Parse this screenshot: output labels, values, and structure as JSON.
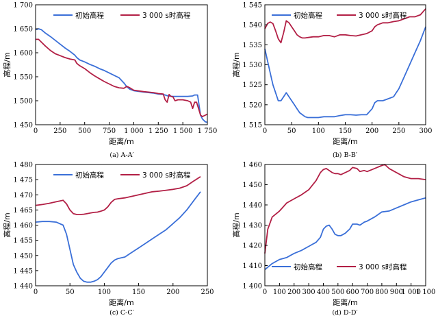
{
  "chart_data": [
    {
      "type": "line",
      "caption": "(a) A-A′",
      "xlabel": "距离/m",
      "ylabel": "高程/m",
      "xlim": [
        0,
        1750
      ],
      "ylim": [
        1450,
        1700
      ],
      "xticks": [
        "0",
        "250",
        "500",
        "750",
        "1 000",
        "1 250",
        "1 500",
        "1 750"
      ],
      "xtick_values": [
        0,
        250,
        500,
        750,
        1000,
        1250,
        1500,
        1750
      ],
      "yticks": [
        "1 450",
        "1 500",
        "1 550",
        "1 600",
        "1 650",
        "1 700"
      ],
      "ytick_values": [
        1450,
        1500,
        1550,
        1600,
        1650,
        1700
      ],
      "legend_position": "top",
      "series": [
        {
          "name": "初始高程",
          "color": "#3a6fd8",
          "x": [
            0,
            30,
            60,
            100,
            150,
            200,
            250,
            300,
            350,
            400,
            420,
            450,
            500,
            550,
            600,
            650,
            700,
            750,
            800,
            850,
            900,
            930,
            960,
            1000,
            1100,
            1200,
            1250,
            1300,
            1320,
            1350,
            1400,
            1450,
            1500,
            1550,
            1600,
            1620,
            1650,
            1680,
            1700,
            1730,
            1750
          ],
          "y": [
            1648,
            1650,
            1648,
            1641,
            1634,
            1626,
            1618,
            1610,
            1603,
            1595,
            1590,
            1585,
            1581,
            1576,
            1572,
            1567,
            1563,
            1558,
            1553,
            1548,
            1537,
            1529,
            1524,
            1521,
            1518,
            1516,
            1514,
            1513,
            1512,
            1510,
            1509,
            1509,
            1509,
            1509,
            1510,
            1512,
            1512,
            1470,
            1462,
            1456,
            1455
          ]
        },
        {
          "name": "3 000 s时高程",
          "color": "#b21f45",
          "x": [
            0,
            30,
            60,
            100,
            150,
            200,
            250,
            300,
            350,
            400,
            420,
            450,
            500,
            550,
            600,
            650,
            700,
            750,
            800,
            850,
            900,
            930,
            960,
            1000,
            1100,
            1200,
            1250,
            1300,
            1320,
            1340,
            1360,
            1380,
            1400,
            1420,
            1450,
            1500,
            1550,
            1580,
            1600,
            1620,
            1640,
            1660,
            1680,
            1700,
            1730,
            1750
          ],
          "y": [
            1628,
            1628,
            1622,
            1614,
            1605,
            1598,
            1594,
            1590,
            1587,
            1585,
            1578,
            1573,
            1567,
            1559,
            1552,
            1546,
            1540,
            1535,
            1530,
            1527,
            1526,
            1530,
            1527,
            1522,
            1519,
            1517,
            1515,
            1514,
            1502,
            1497,
            1513,
            1509,
            1508,
            1500,
            1502,
            1502,
            1500,
            1497,
            1484,
            1497,
            1497,
            1484,
            1470,
            1467,
            1470,
            1472
          ]
        }
      ]
    },
    {
      "type": "line",
      "caption": "(b) B-B′",
      "xlabel": "距离/m",
      "ylabel": "高程/m",
      "xlim": [
        0,
        300
      ],
      "ylim": [
        1515,
        1545
      ],
      "xticks": [
        "0",
        "50",
        "100",
        "150",
        "200",
        "250",
        "300"
      ],
      "xtick_values": [
        0,
        50,
        100,
        150,
        200,
        250,
        300
      ],
      "yticks": [
        "1 515",
        "1 520",
        "1 525",
        "1 530",
        "1 535",
        "1 540",
        "1 545"
      ],
      "ytick_values": [
        1515,
        1520,
        1525,
        1530,
        1535,
        1540,
        1545
      ],
      "legend_position": "top",
      "series": [
        {
          "name": "初始高程",
          "color": "#3a6fd8",
          "x": [
            0,
            5,
            10,
            15,
            20,
            25,
            30,
            35,
            40,
            45,
            50,
            55,
            60,
            65,
            70,
            75,
            80,
            90,
            100,
            110,
            120,
            130,
            140,
            150,
            160,
            170,
            180,
            190,
            200,
            205,
            210,
            220,
            230,
            240,
            250,
            260,
            270,
            280,
            290,
            300
          ],
          "y": [
            1534,
            1531,
            1528,
            1525,
            1523,
            1521,
            1521,
            1522,
            1523,
            1522,
            1521,
            1520,
            1519,
            1518,
            1517.5,
            1517,
            1516.8,
            1516.8,
            1516.8,
            1517,
            1517,
            1517,
            1517.3,
            1517.5,
            1517.5,
            1517.4,
            1517.5,
            1517.5,
            1519,
            1520.5,
            1521,
            1521,
            1521.5,
            1522,
            1524,
            1527,
            1530,
            1533,
            1536,
            1539.5
          ]
        },
        {
          "name": "3 000 s时高程",
          "color": "#b21f45",
          "x": [
            0,
            5,
            10,
            15,
            20,
            25,
            30,
            35,
            40,
            45,
            50,
            55,
            60,
            65,
            70,
            75,
            80,
            90,
            100,
            110,
            120,
            130,
            140,
            150,
            160,
            170,
            180,
            190,
            200,
            205,
            210,
            220,
            230,
            240,
            250,
            260,
            270,
            280,
            290,
            300
          ],
          "y": [
            1539,
            1540.3,
            1540.7,
            1540.3,
            1538.5,
            1536.5,
            1535.5,
            1538,
            1541,
            1540.5,
            1539.5,
            1538.5,
            1537.5,
            1537,
            1536.7,
            1536.7,
            1536.8,
            1537,
            1537,
            1537.3,
            1537.3,
            1537,
            1537.5,
            1537.5,
            1537.3,
            1537.2,
            1537.5,
            1537.8,
            1538.5,
            1539.5,
            1540,
            1540.5,
            1540.5,
            1540.8,
            1541,
            1541.5,
            1542,
            1542,
            1542.5,
            1544
          ]
        }
      ]
    },
    {
      "type": "line",
      "caption": "(c) C-C′",
      "xlabel": "距离/m",
      "ylabel": "高程/m",
      "xlim": [
        0,
        250
      ],
      "ylim": [
        1440,
        1480
      ],
      "xticks": [
        "0",
        "50",
        "100",
        "150",
        "200",
        "250"
      ],
      "xtick_values": [
        0,
        50,
        100,
        150,
        200,
        250
      ],
      "yticks": [
        "1 440",
        "1 445",
        "1 450",
        "1 455",
        "1 460",
        "1 465",
        "1 470",
        "1 475",
        "1 480"
      ],
      "ytick_values": [
        1440,
        1445,
        1450,
        1455,
        1460,
        1465,
        1470,
        1475,
        1480
      ],
      "legend_position": "top",
      "series": [
        {
          "name": "初始高程",
          "color": "#3a6fd8",
          "x": [
            0,
            10,
            20,
            30,
            40,
            45,
            50,
            55,
            60,
            65,
            70,
            75,
            80,
            85,
            90,
            95,
            100,
            105,
            110,
            115,
            120,
            130,
            140,
            150,
            160,
            170,
            180,
            190,
            200,
            210,
            220,
            230,
            240
          ],
          "y": [
            1461,
            1461.2,
            1461.2,
            1461,
            1460,
            1457,
            1452,
            1447,
            1444.5,
            1442.5,
            1441.5,
            1441.2,
            1441.2,
            1441.5,
            1442,
            1443,
            1444.5,
            1446,
            1447.5,
            1448.5,
            1449,
            1449.5,
            1451,
            1452.5,
            1454,
            1455.5,
            1457,
            1458.5,
            1460.5,
            1462.5,
            1465,
            1468,
            1471
          ]
        },
        {
          "name": "3 000 s时高程",
          "color": "#b21f45",
          "x": [
            0,
            10,
            20,
            30,
            40,
            45,
            50,
            55,
            60,
            65,
            70,
            75,
            80,
            85,
            90,
            95,
            100,
            105,
            110,
            115,
            120,
            130,
            140,
            150,
            160,
            170,
            180,
            190,
            200,
            210,
            220,
            230,
            240
          ],
          "y": [
            1466.5,
            1466.8,
            1467.2,
            1467.7,
            1468.2,
            1467,
            1465,
            1463.8,
            1463.5,
            1463.5,
            1463.6,
            1463.8,
            1464,
            1464.2,
            1464.3,
            1464.6,
            1465,
            1466,
            1467.5,
            1468.5,
            1468.7,
            1469,
            1469.5,
            1470,
            1470.5,
            1471,
            1471.2,
            1471.5,
            1471.8,
            1472.2,
            1473,
            1474.5,
            1476
          ]
        }
      ]
    },
    {
      "type": "line",
      "caption": "(d) D-D′",
      "xlabel": "距离/m",
      "ylabel": "高程/m",
      "xlim": [
        0,
        1100
      ],
      "ylim": [
        1400,
        1460
      ],
      "xticks": [
        "0",
        "100",
        "200",
        "300",
        "400",
        "500",
        "600",
        "700",
        "800",
        "900",
        "1 000",
        "1 100"
      ],
      "xtick_values": [
        0,
        100,
        200,
        300,
        400,
        500,
        600,
        700,
        800,
        900,
        1000,
        1100
      ],
      "yticks": [
        "1 400",
        "1 410",
        "1 420",
        "1 430",
        "1 440",
        "1 450",
        "1 460"
      ],
      "ytick_values": [
        1400,
        1410,
        1420,
        1430,
        1440,
        1450,
        1460
      ],
      "legend_position": "bottom",
      "series": [
        {
          "name": "初始高程",
          "color": "#3a6fd8",
          "x": [
            0,
            50,
            100,
            150,
            200,
            250,
            300,
            350,
            380,
            400,
            420,
            440,
            460,
            480,
            500,
            520,
            550,
            580,
            600,
            630,
            650,
            680,
            700,
            750,
            800,
            850,
            900,
            950,
            1000,
            1050,
            1100
          ],
          "y": [
            1408,
            1411,
            1413,
            1414,
            1416,
            1417.5,
            1419.5,
            1421.5,
            1424,
            1428,
            1429.5,
            1430,
            1428,
            1425.5,
            1424.8,
            1424.8,
            1426,
            1428,
            1430.5,
            1430.5,
            1430,
            1431.5,
            1432,
            1434,
            1436.5,
            1437,
            1438.5,
            1440,
            1441.5,
            1442.5,
            1443.5
          ]
        },
        {
          "name": "3 000 s时高程",
          "color": "#b21f45",
          "x": [
            0,
            20,
            50,
            100,
            150,
            200,
            250,
            300,
            350,
            380,
            400,
            420,
            440,
            460,
            480,
            500,
            520,
            550,
            580,
            600,
            630,
            650,
            680,
            700,
            750,
            800,
            820,
            850,
            900,
            950,
            1000,
            1050,
            1100
          ],
          "y": [
            1416,
            1428,
            1434,
            1437,
            1441,
            1443,
            1445,
            1447.5,
            1452,
            1456,
            1457.5,
            1458,
            1457,
            1456,
            1455.5,
            1455.5,
            1455,
            1456,
            1457,
            1458.5,
            1458,
            1456.5,
            1457,
            1456.5,
            1458,
            1459.5,
            1460,
            1458,
            1456,
            1454,
            1453,
            1453,
            1452.5
          ]
        }
      ]
    }
  ]
}
